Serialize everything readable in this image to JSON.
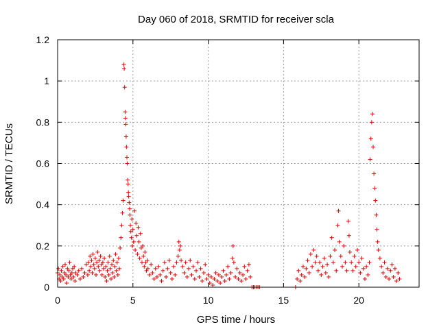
{
  "chart_data": {
    "type": "scatter",
    "title": "Day 060 of 2018, SRMTID for receiver scla",
    "xlabel": "GPS time / hours",
    "ylabel": "SRMTID / TECUs",
    "xlim": [
      0,
      24
    ],
    "ylim": [
      0,
      1.2
    ],
    "xticks": [
      0,
      5,
      10,
      15,
      20
    ],
    "xtick_labels": [
      "0",
      "5",
      "10",
      "15",
      "20"
    ],
    "yticks": [
      0,
      0.2,
      0.4,
      0.6,
      0.8,
      1,
      1.2
    ],
    "ytick_labels": [
      "0",
      "0.2",
      "0.4",
      "0.6",
      "0.8",
      "1",
      "1.2"
    ],
    "grid": true,
    "marker": "+",
    "color": "#e00000",
    "series": [
      {
        "name": "SRMTID",
        "points": [
          [
            0.0,
            0.07
          ],
          [
            0.05,
            0.09
          ],
          [
            0.1,
            0.04
          ],
          [
            0.15,
            0.06
          ],
          [
            0.2,
            0.03
          ],
          [
            0.25,
            0.08
          ],
          [
            0.3,
            0.05
          ],
          [
            0.35,
            0.1
          ],
          [
            0.4,
            0.04
          ],
          [
            0.45,
            0.07
          ],
          [
            0.5,
            0.11
          ],
          [
            0.55,
            0.06
          ],
          [
            0.6,
            0.02
          ],
          [
            0.65,
            0.09
          ],
          [
            0.7,
            0.05
          ],
          [
            0.75,
            0.08
          ],
          [
            0.8,
            0.12
          ],
          [
            0.85,
            0.06
          ],
          [
            0.9,
            0.04
          ],
          [
            0.95,
            0.07
          ],
          [
            1.0,
            0.09
          ],
          [
            1.05,
            0.05
          ],
          [
            1.1,
            0.1
          ],
          [
            1.15,
            0.03
          ],
          [
            1.2,
            0.07
          ],
          [
            1.3,
            0.06
          ],
          [
            1.4,
            0.08
          ],
          [
            1.5,
            0.04
          ],
          [
            1.6,
            0.09
          ],
          [
            1.7,
            0.05
          ],
          [
            1.8,
            0.07
          ],
          [
            1.9,
            0.11
          ],
          [
            2.0,
            0.06
          ],
          [
            2.05,
            0.12
          ],
          [
            2.1,
            0.08
          ],
          [
            2.15,
            0.15
          ],
          [
            2.2,
            0.1
          ],
          [
            2.25,
            0.13
          ],
          [
            2.3,
            0.07
          ],
          [
            2.35,
            0.16
          ],
          [
            2.4,
            0.11
          ],
          [
            2.45,
            0.09
          ],
          [
            2.5,
            0.14
          ],
          [
            2.55,
            0.06
          ],
          [
            2.6,
            0.12
          ],
          [
            2.65,
            0.17
          ],
          [
            2.7,
            0.1
          ],
          [
            2.75,
            0.13
          ],
          [
            2.8,
            0.08
          ],
          [
            2.85,
            0.15
          ],
          [
            2.9,
            0.11
          ],
          [
            2.95,
            0.06
          ],
          [
            3.0,
            0.12
          ],
          [
            3.05,
            0.09
          ],
          [
            3.1,
            0.14
          ],
          [
            3.15,
            0.05
          ],
          [
            3.2,
            0.1
          ],
          [
            3.25,
            0.03
          ],
          [
            3.3,
            0.08
          ],
          [
            3.35,
            0.12
          ],
          [
            3.4,
            0.06
          ],
          [
            3.45,
            0.15
          ],
          [
            3.5,
            0.09
          ],
          [
            3.55,
            0.04
          ],
          [
            3.6,
            0.11
          ],
          [
            3.65,
            0.07
          ],
          [
            3.7,
            0.13
          ],
          [
            3.75,
            0.05
          ],
          [
            3.8,
            0.1
          ],
          [
            3.85,
            0.16
          ],
          [
            3.9,
            0.08
          ],
          [
            3.95,
            0.12
          ],
          [
            4.0,
            0.06
          ],
          [
            4.05,
            0.14
          ],
          [
            4.1,
            0.09
          ],
          [
            4.15,
            0.19
          ],
          [
            4.2,
            0.24
          ],
          [
            4.25,
            0.3
          ],
          [
            4.3,
            0.36
          ],
          [
            4.35,
            0.42
          ],
          [
            4.4,
            1.08
          ],
          [
            4.42,
            1.06
          ],
          [
            4.45,
            0.97
          ],
          [
            4.48,
            0.85
          ],
          [
            4.5,
            0.82
          ],
          [
            4.52,
            0.79
          ],
          [
            4.55,
            0.73
          ],
          [
            4.57,
            0.68
          ],
          [
            4.6,
            0.63
          ],
          [
            4.62,
            0.6
          ],
          [
            4.65,
            0.52
          ],
          [
            4.68,
            0.5
          ],
          [
            4.7,
            0.46
          ],
          [
            4.72,
            0.44
          ],
          [
            4.75,
            0.41
          ],
          [
            4.78,
            0.38
          ],
          [
            4.8,
            0.35
          ],
          [
            4.83,
            0.3
          ],
          [
            4.86,
            0.27
          ],
          [
            4.9,
            0.24
          ],
          [
            4.93,
            0.33
          ],
          [
            4.96,
            0.2
          ],
          [
            5.0,
            0.28
          ],
          [
            5.05,
            0.22
          ],
          [
            5.1,
            0.37
          ],
          [
            5.15,
            0.18
          ],
          [
            5.2,
            0.31
          ],
          [
            5.25,
            0.25
          ],
          [
            5.3,
            0.16
          ],
          [
            5.35,
            0.29
          ],
          [
            5.4,
            0.22
          ],
          [
            5.45,
            0.14
          ],
          [
            5.5,
            0.26
          ],
          [
            5.55,
            0.19
          ],
          [
            5.6,
            0.12
          ],
          [
            5.65,
            0.2
          ],
          [
            5.7,
            0.15
          ],
          [
            5.75,
            0.1
          ],
          [
            5.8,
            0.17
          ],
          [
            5.85,
            0.12
          ],
          [
            5.9,
            0.08
          ],
          [
            5.95,
            0.13
          ],
          [
            6.0,
            0.09
          ],
          [
            6.1,
            0.06
          ],
          [
            6.2,
            0.11
          ],
          [
            6.3,
            0.07
          ],
          [
            6.4,
            0.04
          ],
          [
            6.5,
            0.09
          ],
          [
            6.6,
            0.05
          ],
          [
            6.7,
            0.1
          ],
          [
            6.8,
            0.06
          ],
          [
            6.9,
            0.03
          ],
          [
            7.0,
            0.08
          ],
          [
            7.1,
            0.12
          ],
          [
            7.2,
            0.05
          ],
          [
            7.3,
            0.09
          ],
          [
            7.4,
            0.13
          ],
          [
            7.5,
            0.07
          ],
          [
            7.6,
            0.04
          ],
          [
            7.7,
            0.1
          ],
          [
            7.8,
            0.06
          ],
          [
            7.9,
            0.12
          ],
          [
            8.0,
            0.15
          ],
          [
            8.05,
            0.22
          ],
          [
            8.1,
            0.18
          ],
          [
            8.15,
            0.2
          ],
          [
            8.2,
            0.13
          ],
          [
            8.3,
            0.1
          ],
          [
            8.4,
            0.07
          ],
          [
            8.5,
            0.12
          ],
          [
            8.6,
            0.05
          ],
          [
            8.7,
            0.09
          ],
          [
            8.8,
            0.13
          ],
          [
            8.9,
            0.06
          ],
          [
            9.0,
            0.1
          ],
          [
            9.1,
            0.04
          ],
          [
            9.2,
            0.08
          ],
          [
            9.3,
            0.12
          ],
          [
            9.4,
            0.05
          ],
          [
            9.5,
            0.09
          ],
          [
            9.6,
            0.03
          ],
          [
            9.7,
            0.07
          ],
          [
            9.8,
            0.11
          ],
          [
            9.9,
            0.04
          ],
          [
            10.0,
            0.06
          ],
          [
            10.1,
            0.02
          ],
          [
            10.2,
            0.05
          ],
          [
            10.3,
            0.01
          ],
          [
            10.4,
            0.04
          ],
          [
            10.5,
            0.07
          ],
          [
            10.6,
            0.03
          ],
          [
            10.7,
            0.06
          ],
          [
            10.8,
            0.02
          ],
          [
            10.9,
            0.05
          ],
          [
            11.0,
            0.08
          ],
          [
            11.1,
            0.03
          ],
          [
            11.2,
            0.06
          ],
          [
            11.3,
            0.1
          ],
          [
            11.4,
            0.04
          ],
          [
            11.5,
            0.07
          ],
          [
            11.6,
            0.14
          ],
          [
            11.65,
            0.2
          ],
          [
            11.7,
            0.12
          ],
          [
            11.8,
            0.05
          ],
          [
            11.9,
            0.09
          ],
          [
            12.0,
            0.04
          ],
          [
            12.1,
            0.07
          ],
          [
            12.2,
            0.03
          ],
          [
            12.3,
            0.06
          ],
          [
            12.4,
            0.1
          ],
          [
            12.5,
            0.04
          ],
          [
            12.6,
            0.08
          ],
          [
            12.7,
            0.11
          ],
          [
            12.8,
            0.05
          ],
          [
            12.9,
            0.0
          ],
          [
            13.0,
            0.0
          ],
          [
            13.1,
            0.0
          ],
          [
            13.2,
            0.0
          ],
          [
            13.3,
            0.0
          ],
          [
            13.4,
            0.0
          ],
          [
            15.8,
            0.0
          ],
          [
            15.9,
            0.04
          ],
          [
            16.0,
            0.08
          ],
          [
            16.1,
            0.03
          ],
          [
            16.2,
            0.06
          ],
          [
            16.3,
            0.1
          ],
          [
            16.4,
            0.05
          ],
          [
            16.5,
            0.09
          ],
          [
            16.6,
            0.13
          ],
          [
            16.7,
            0.07
          ],
          [
            16.8,
            0.16
          ],
          [
            16.9,
            0.1
          ],
          [
            17.0,
            0.18
          ],
          [
            17.1,
            0.12
          ],
          [
            17.2,
            0.15
          ],
          [
            17.3,
            0.08
          ],
          [
            17.4,
            0.12
          ],
          [
            17.5,
            0.06
          ],
          [
            17.6,
            0.1
          ],
          [
            17.7,
            0.14
          ],
          [
            17.8,
            0.07
          ],
          [
            17.9,
            0.11
          ],
          [
            18.0,
            0.05
          ],
          [
            18.1,
            0.15
          ],
          [
            18.2,
            0.24
          ],
          [
            18.3,
            0.12
          ],
          [
            18.4,
            0.18
          ],
          [
            18.5,
            0.08
          ],
          [
            18.6,
            0.3
          ],
          [
            18.65,
            0.37
          ],
          [
            18.7,
            0.22
          ],
          [
            18.8,
            0.15
          ],
          [
            18.9,
            0.1
          ],
          [
            19.0,
            0.2
          ],
          [
            19.1,
            0.12
          ],
          [
            19.2,
            0.08
          ],
          [
            19.3,
            0.32
          ],
          [
            19.35,
            0.25
          ],
          [
            19.4,
            0.17
          ],
          [
            19.5,
            0.12
          ],
          [
            19.6,
            0.08
          ],
          [
            19.7,
            0.15
          ],
          [
            19.8,
            0.1
          ],
          [
            19.9,
            0.18
          ],
          [
            20.0,
            0.12
          ],
          [
            20.1,
            0.07
          ],
          [
            20.2,
            0.14
          ],
          [
            20.3,
            0.09
          ],
          [
            20.4,
            0.04
          ],
          [
            20.5,
            0.1
          ],
          [
            20.6,
            0.06
          ],
          [
            20.7,
            0.12
          ],
          [
            20.75,
            0.62
          ],
          [
            20.8,
            0.72
          ],
          [
            20.85,
            0.8
          ],
          [
            20.9,
            0.84
          ],
          [
            20.95,
            0.68
          ],
          [
            21.0,
            0.55
          ],
          [
            21.05,
            0.48
          ],
          [
            21.1,
            0.42
          ],
          [
            21.15,
            0.35
          ],
          [
            21.2,
            0.28
          ],
          [
            21.25,
            0.22
          ],
          [
            21.3,
            0.18
          ],
          [
            21.4,
            0.14
          ],
          [
            21.5,
            0.1
          ],
          [
            21.6,
            0.07
          ],
          [
            21.7,
            0.12
          ],
          [
            21.8,
            0.05
          ],
          [
            21.9,
            0.09
          ],
          [
            22.0,
            0.04
          ],
          [
            22.1,
            0.08
          ],
          [
            22.2,
            0.11
          ],
          [
            22.3,
            0.05
          ],
          [
            22.4,
            0.09
          ],
          [
            22.5,
            0.03
          ],
          [
            22.6,
            0.07
          ],
          [
            22.7,
            0.04
          ]
        ]
      }
    ]
  }
}
